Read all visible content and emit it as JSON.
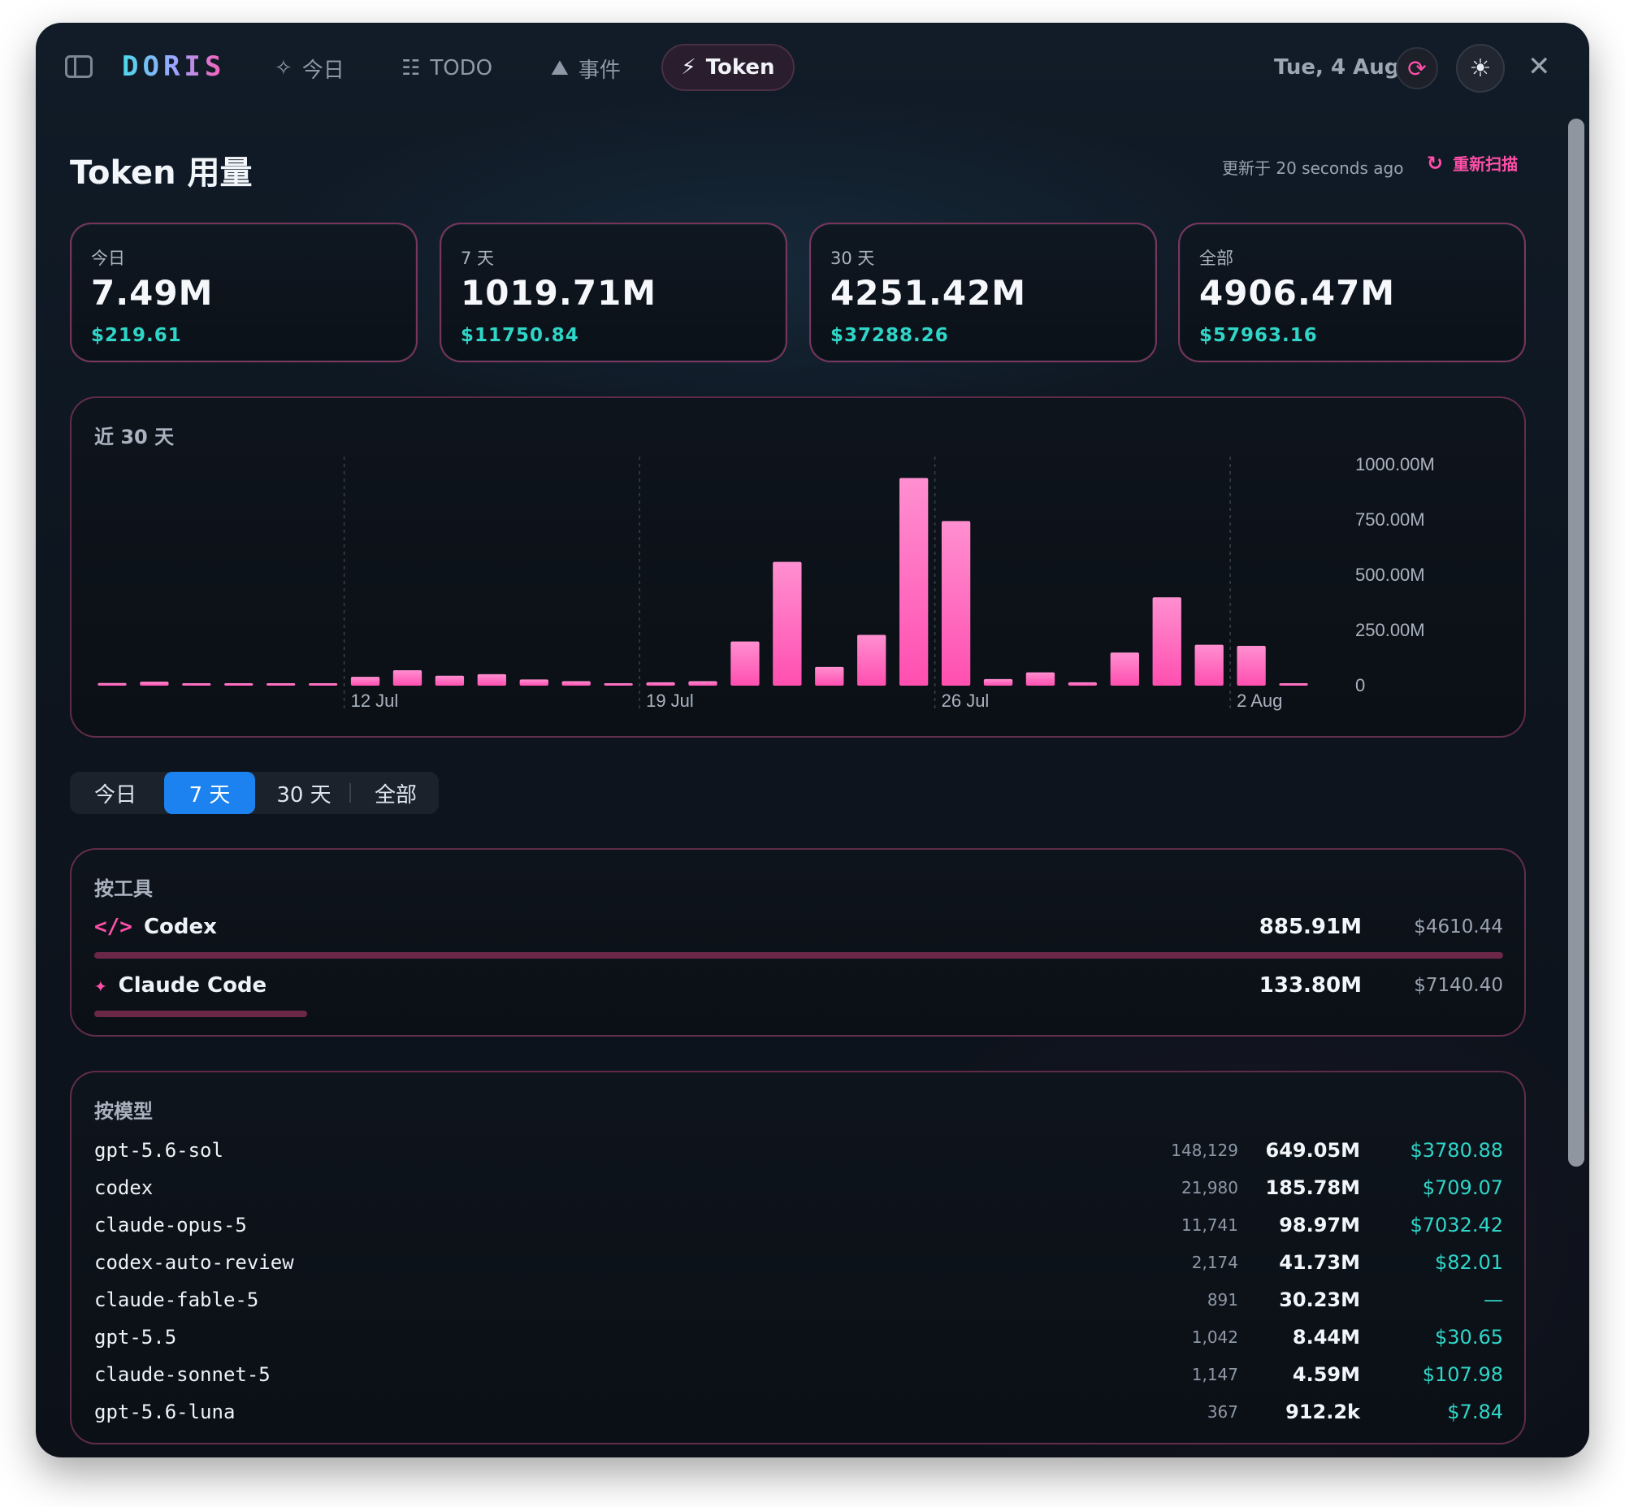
{
  "header": {
    "logo": "DORIS",
    "tabs": [
      {
        "label": "今日",
        "icon": "sparkle-icon"
      },
      {
        "label": "TODO",
        "icon": "list-icon"
      },
      {
        "label": "事件",
        "icon": "inbox-icon"
      },
      {
        "label": "Token",
        "icon": "bolt-icon",
        "active": true
      }
    ],
    "date": "Tue, 4 Aug"
  },
  "page": {
    "title": "Token 用量",
    "updated": "更新于 20 seconds ago",
    "rescan": "重新扫描"
  },
  "stats": [
    {
      "label": "今日",
      "value": "7.49M",
      "cost": "$219.61"
    },
    {
      "label": "7 天",
      "value": "1019.71M",
      "cost": "$11750.84"
    },
    {
      "label": "30 天",
      "value": "4251.42M",
      "cost": "$37288.26"
    },
    {
      "label": "全部",
      "value": "4906.47M",
      "cost": "$57963.16"
    }
  ],
  "chart": {
    "title": "近 30 天"
  },
  "chart_data": {
    "type": "bar",
    "title": "近 30 天",
    "x_tick_labels": [
      "12 Jul",
      "19 Jul",
      "26 Jul",
      "2 Aug"
    ],
    "y_tick_labels": [
      "1000.00M",
      "750.00M",
      "500.00M",
      "250.00M",
      "0"
    ],
    "ylim": [
      0,
      1000
    ],
    "y_unit": "M tokens",
    "values": [
      12,
      18,
      6,
      8,
      4,
      6,
      40,
      70,
      45,
      52,
      28,
      20,
      4,
      15,
      20,
      200,
      560,
      85,
      230,
      940,
      745,
      30,
      60,
      15,
      150,
      400,
      185,
      180,
      5
    ],
    "grid": "vertical dashed at ticks",
    "color": "#ff5cb5"
  },
  "range_tabs": [
    {
      "label": "今日",
      "active": false
    },
    {
      "label": "7 天",
      "active": true
    },
    {
      "label": "30 天",
      "active": false
    },
    {
      "label": "全部",
      "active": false
    }
  ],
  "by_tool": {
    "title": "按工具",
    "rows": [
      {
        "name": "Codex",
        "icon": "code-icon",
        "tokens": "885.91M",
        "cost": "$4610.44",
        "share": 1.0
      },
      {
        "name": "Claude Code",
        "icon": "sparkle-icon",
        "tokens": "133.80M",
        "cost": "$7140.40",
        "share": 0.151
      }
    ]
  },
  "by_model": {
    "title": "按模型",
    "rows": [
      {
        "name": "gpt-5.6-sol",
        "requests": "148,129",
        "tokens": "649.05M",
        "cost": "$3780.88"
      },
      {
        "name": "codex",
        "requests": "21,980",
        "tokens": "185.78M",
        "cost": "$709.07"
      },
      {
        "name": "claude-opus-5",
        "requests": "11,741",
        "tokens": "98.97M",
        "cost": "$7032.42"
      },
      {
        "name": "codex-auto-review",
        "requests": "2,174",
        "tokens": "41.73M",
        "cost": "$82.01"
      },
      {
        "name": "claude-fable-5",
        "requests": "891",
        "tokens": "30.23M",
        "cost": "—"
      },
      {
        "name": "gpt-5.5",
        "requests": "1,042",
        "tokens": "8.44M",
        "cost": "$30.65"
      },
      {
        "name": "claude-sonnet-5",
        "requests": "1,147",
        "tokens": "4.59M",
        "cost": "$107.98"
      },
      {
        "name": "gpt-5.6-luna",
        "requests": "367",
        "tokens": "912.2k",
        "cost": "$7.84"
      }
    ]
  },
  "colors": {
    "accent": "#ff4fa8",
    "teal": "#2fd6c8",
    "blue": "#1b82f0"
  }
}
